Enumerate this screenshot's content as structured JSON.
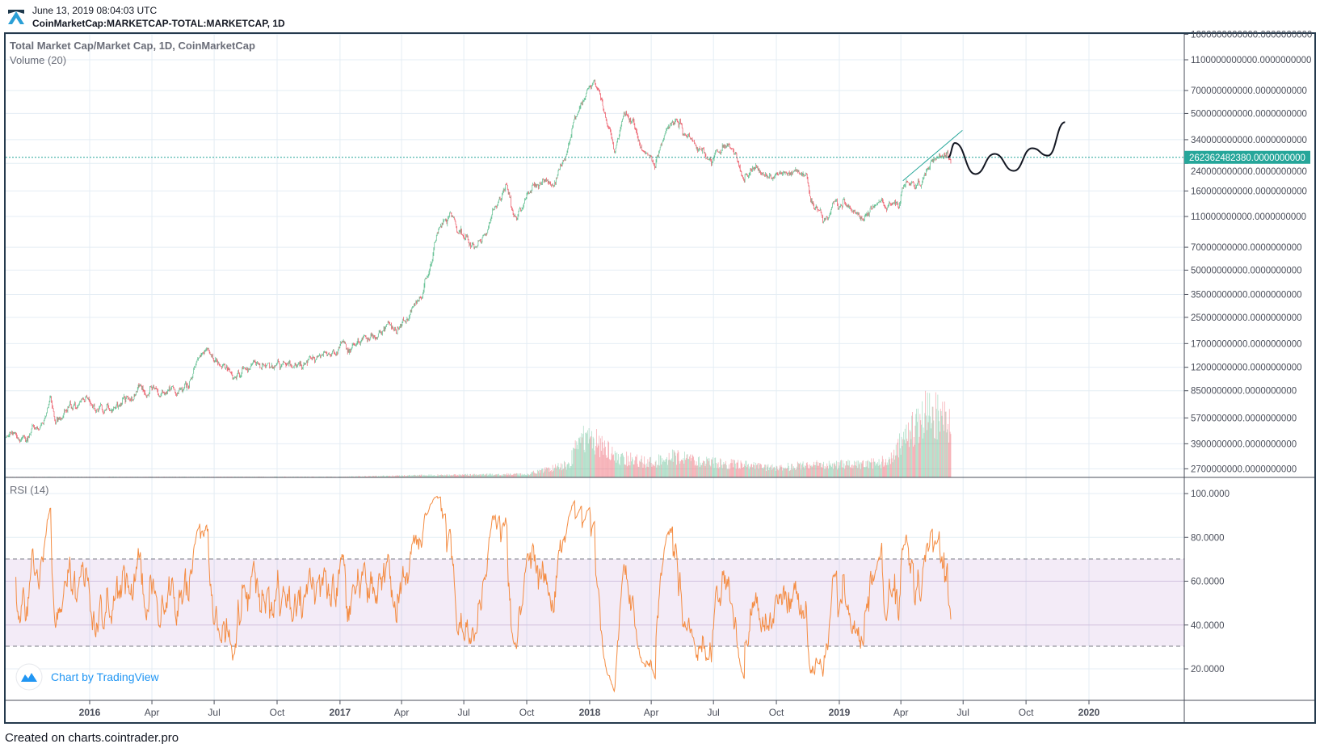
{
  "header": {
    "timestamp": "June 13, 2019 08:04:03 UTC",
    "symbol": "CoinMarketCap:MARKETCAP-TOTAL:MARKETCAP, 1D",
    "logo_icon": "cointrader-logo-icon"
  },
  "legend": {
    "main": "Total Market Cap/Market Cap, 1D, CoinMarketCap",
    "volume": "Volume (20)",
    "rsi": "RSI (14)"
  },
  "watermark": {
    "text": "Chart by TradingView",
    "icon": "tradingview-cloud-icon",
    "color": "#2196f3"
  },
  "footer": "Created on charts.cointrader.pro",
  "chart_data": {
    "type": "candlestick",
    "scale": "log",
    "grid": true,
    "colors": {
      "up": "#53b987",
      "down": "#eb4d5c",
      "rsi": "#f48c42",
      "price_line": "#26a69a",
      "projection": "#131722"
    },
    "current_price": {
      "value": 262362482380,
      "label": "262362482380.0000000000"
    },
    "x_ticks": [
      {
        "label": "2016",
        "date": "2016-01-01",
        "major": true
      },
      {
        "label": "Apr",
        "date": "2016-04-01"
      },
      {
        "label": "Jul",
        "date": "2016-07-01"
      },
      {
        "label": "Oct",
        "date": "2016-10-01"
      },
      {
        "label": "2017",
        "date": "2017-01-01",
        "major": true
      },
      {
        "label": "Apr",
        "date": "2017-04-01"
      },
      {
        "label": "Jul",
        "date": "2017-07-01"
      },
      {
        "label": "Oct",
        "date": "2017-10-01"
      },
      {
        "label": "2018",
        "date": "2018-01-01",
        "major": true
      },
      {
        "label": "Apr",
        "date": "2018-04-01"
      },
      {
        "label": "Jul",
        "date": "2018-07-01"
      },
      {
        "label": "Oct",
        "date": "2018-10-01"
      },
      {
        "label": "2019",
        "date": "2019-01-01",
        "major": true
      },
      {
        "label": "Apr",
        "date": "2019-04-01"
      },
      {
        "label": "Jul",
        "date": "2019-07-01"
      },
      {
        "label": "Oct",
        "date": "2019-10-01"
      },
      {
        "label": "2020",
        "date": "2020-01-01",
        "major": true
      }
    ],
    "price_ticks": [
      {
        "label": "1600000000000.0000000000",
        "value": 1600000000000.0
      },
      {
        "label": "1100000000000.0000000000",
        "value": 1100000000000.0
      },
      {
        "label": "700000000000.0000000000",
        "value": 700000000000.0
      },
      {
        "label": "500000000000.0000000000",
        "value": 500000000000.0
      },
      {
        "label": "340000000000.0000000000",
        "value": 340000000000.0
      },
      {
        "label": "240000000000.0000000000",
        "value": 240000000000.0
      },
      {
        "label": "160000000000.0000000000",
        "value": 160000000000.0
      },
      {
        "label": "110000000000.0000000000",
        "value": 110000000000.0
      },
      {
        "label": "70000000000.0000000000",
        "value": 70000000000.0
      },
      {
        "label": "50000000000.0000000000",
        "value": 50000000000.0
      },
      {
        "label": "35000000000.0000000000",
        "value": 35000000000.0
      },
      {
        "label": "25000000000.0000000000",
        "value": 25000000000.0
      },
      {
        "label": "17000000000.0000000000",
        "value": 17000000000.0
      },
      {
        "label": "12000000000.0000000000",
        "value": 12000000000.0
      },
      {
        "label": "8500000000.0000000000",
        "value": 8500000000.0
      },
      {
        "label": "5700000000.0000000000",
        "value": 5700000000.0
      },
      {
        "label": "3900000000.0000000000",
        "value": 3900000000.0
      },
      {
        "label": "2700000000.0000000000",
        "value": 2700000000.0
      }
    ],
    "rsi_ticks": [
      {
        "label": "100.0000",
        "value": 100
      },
      {
        "label": "80.0000",
        "value": 80
      },
      {
        "label": "60.0000",
        "value": 60
      },
      {
        "label": "40.0000",
        "value": 40
      },
      {
        "label": "20.0000",
        "value": 20
      }
    ],
    "rsi_band": [
      30,
      70
    ],
    "close_keypoints": [
      [
        "2015-09-01",
        4300000000.0
      ],
      [
        "2015-10-01",
        4200000000.0
      ],
      [
        "2015-10-25",
        5000000000.0
      ],
      [
        "2015-11-04",
        8300000000.0
      ],
      [
        "2015-11-12",
        5600000000.0
      ],
      [
        "2015-12-15",
        7400000000.0
      ],
      [
        "2016-01-15",
        6600000000.0
      ],
      [
        "2016-02-15",
        6900000000.0
      ],
      [
        "2016-03-10",
        8300000000.0
      ],
      [
        "2016-04-15",
        8500000000.0
      ],
      [
        "2016-05-25",
        9500000000.0
      ],
      [
        "2016-06-17",
        15500000000.0
      ],
      [
        "2016-07-01",
        13000000000.0
      ],
      [
        "2016-08-02",
        10800000000.0
      ],
      [
        "2016-09-01",
        11800000000.0
      ],
      [
        "2016-10-01",
        12000000000.0
      ],
      [
        "2016-11-01",
        12500000000.0
      ],
      [
        "2016-12-01",
        13500000000.0
      ],
      [
        "2016-12-25",
        14500000000.0
      ],
      [
        "2017-01-04",
        19500000000.0
      ],
      [
        "2017-01-12",
        15500000000.0
      ],
      [
        "2017-02-10",
        18500000000.0
      ],
      [
        "2017-03-10",
        23000000000.0
      ],
      [
        "2017-03-25",
        21000000000.0
      ],
      [
        "2017-04-20",
        29000000000.0
      ],
      [
        "2017-05-10",
        45000000000.0
      ],
      [
        "2017-05-25",
        90000000000.0
      ],
      [
        "2017-06-12",
        116000000000.0
      ],
      [
        "2017-07-16",
        68000000000.0
      ],
      [
        "2017-08-05",
        95000000000.0
      ],
      [
        "2017-09-01",
        178000000000.0
      ],
      [
        "2017-09-15",
        105000000000.0
      ],
      [
        "2017-10-01",
        145000000000.0
      ],
      [
        "2017-10-20",
        175000000000.0
      ],
      [
        "2017-11-12",
        185000000000.0
      ],
      [
        "2017-11-30",
        320000000000.0
      ],
      [
        "2017-12-08",
        430000000000.0
      ],
      [
        "2017-12-22",
        600000000000.0
      ],
      [
        "2018-01-07",
        817000000000.0
      ],
      [
        "2018-01-20",
        580000000000.0
      ],
      [
        "2018-02-06",
        290000000000.0
      ],
      [
        "2018-02-20",
        480000000000.0
      ],
      [
        "2018-03-05",
        440000000000.0
      ],
      [
        "2018-03-18",
        300000000000.0
      ],
      [
        "2018-04-06",
        255000000000.0
      ],
      [
        "2018-04-25",
        420000000000.0
      ],
      [
        "2018-05-05",
        460000000000.0
      ],
      [
        "2018-05-30",
        340000000000.0
      ],
      [
        "2018-06-28",
        255000000000.0
      ],
      [
        "2018-07-24",
        330000000000.0
      ],
      [
        "2018-08-14",
        195000000000.0
      ],
      [
        "2018-09-03",
        230000000000.0
      ],
      [
        "2018-09-12",
        200000000000.0
      ],
      [
        "2018-10-10",
        212000000000.0
      ],
      [
        "2018-11-14",
        200000000000.0
      ],
      [
        "2018-11-25",
        125000000000.0
      ],
      [
        "2018-12-15",
        103000000000.0
      ],
      [
        "2018-12-22",
        135000000000.0
      ],
      [
        "2019-01-10",
        125000000000.0
      ],
      [
        "2019-02-06",
        110000000000.0
      ],
      [
        "2019-02-24",
        135000000000.0
      ],
      [
        "2019-03-30",
        140000000000.0
      ],
      [
        "2019-04-03",
        175000000000.0
      ],
      [
        "2019-04-25",
        170000000000.0
      ],
      [
        "2019-05-14",
        240000000000.0
      ],
      [
        "2019-05-30",
        270000000000.0
      ],
      [
        "2019-06-13",
        262000000000.0
      ]
    ],
    "volume_keypoints": [
      [
        "2015-09-01",
        300000000.0
      ],
      [
        "2017-01-01",
        400000000.0
      ],
      [
        "2017-06-01",
        1500000000.0
      ],
      [
        "2017-10-01",
        2000000000.0
      ],
      [
        "2017-12-01",
        8000000000.0
      ],
      [
        "2017-12-20",
        24000000000.0
      ],
      [
        "2018-01-10",
        22000000000.0
      ],
      [
        "2018-02-15",
        12000000000.0
      ],
      [
        "2018-04-01",
        9000000000.0
      ],
      [
        "2018-05-05",
        13000000000.0
      ],
      [
        "2018-07-01",
        9000000000.0
      ],
      [
        "2018-10-01",
        6000000000.0
      ],
      [
        "2018-12-01",
        8000000000.0
      ],
      [
        "2019-02-01",
        8000000000.0
      ],
      [
        "2019-03-15",
        10000000000.0
      ],
      [
        "2019-04-05",
        25000000000.0
      ],
      [
        "2019-05-15",
        42000000000.0
      ],
      [
        "2019-06-13",
        30000000000.0
      ]
    ],
    "trendline": [
      [
        "2019-04-04",
        186000000000.0
      ],
      [
        "2019-06-30",
        390000000000.0
      ]
    ],
    "projection": [
      [
        "2019-06-09",
        262000000000.0
      ],
      [
        "2019-06-19",
        324000000000.0
      ],
      [
        "2019-07-19",
        205000000000.0
      ],
      [
        "2019-08-16",
        276000000000.0
      ],
      [
        "2019-09-13",
        215000000000.0
      ],
      [
        "2019-10-10",
        300000000000.0
      ],
      [
        "2019-11-02",
        269000000000.0
      ],
      [
        "2019-11-27",
        440000000000.0
      ]
    ]
  }
}
